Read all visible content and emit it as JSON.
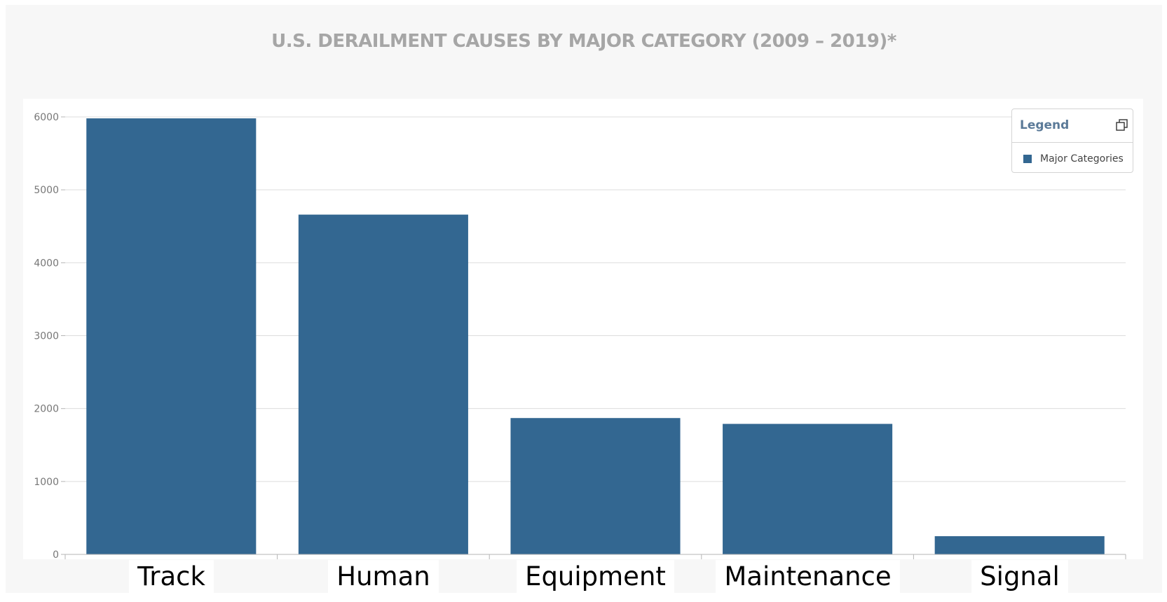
{
  "chart_data": {
    "type": "bar",
    "title": "U.S. DERAILMENT CAUSES BY MAJOR CATEGORY (2009 – 2019)*",
    "categories": [
      "Track",
      "Human",
      "Equipment",
      "Maintenance",
      "Signal"
    ],
    "series": [
      {
        "name": "Major Categories",
        "values": [
          5980,
          4660,
          1870,
          1790,
          250
        ]
      }
    ],
    "ylim": [
      0,
      6000
    ],
    "yticks": [
      0,
      1000,
      2000,
      3000,
      4000,
      5000,
      6000
    ],
    "grid": true,
    "legend": {
      "title": "Legend",
      "placement": "top-right"
    },
    "colors": {
      "bar": "#336791",
      "title": "#a6a6a6"
    }
  }
}
